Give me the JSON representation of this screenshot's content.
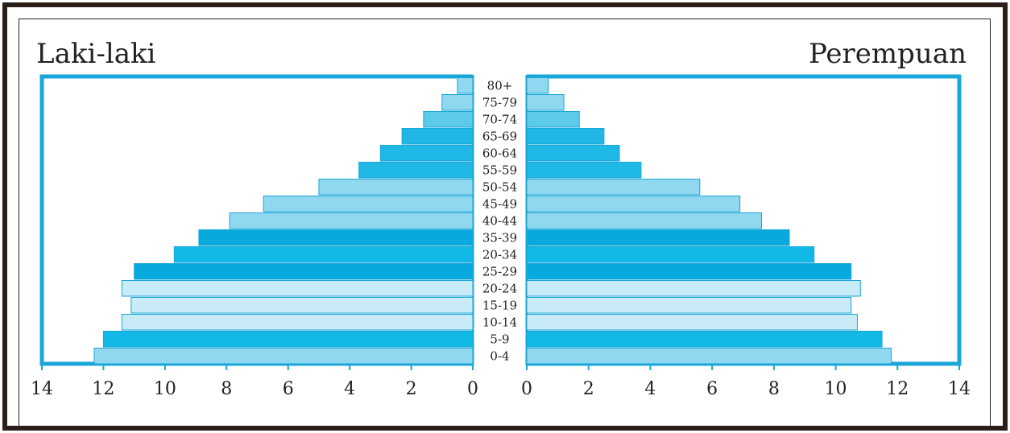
{
  "chart_data": {
    "type": "bar",
    "title_left": "Laki-laki",
    "title_right": "Perempuan",
    "categories": [
      "80+",
      "75-79",
      "70-74",
      "65-69",
      "60-64",
      "55-59",
      "50-54",
      "45-49",
      "40-44",
      "35-39",
      "20-34",
      "25-29",
      "20-24",
      "15-19",
      "10-14",
      "5-9",
      "0-4"
    ],
    "series": [
      {
        "name": "Laki-laki",
        "values": [
          0.5,
          1.0,
          1.6,
          2.3,
          3.0,
          3.7,
          5.0,
          6.8,
          7.9,
          8.9,
          9.7,
          11.0,
          11.4,
          11.1,
          11.4,
          12.0,
          12.3
        ]
      },
      {
        "name": "Perempuan",
        "values": [
          0.7,
          1.2,
          1.7,
          2.5,
          3.0,
          3.7,
          5.6,
          6.9,
          7.6,
          8.5,
          9.3,
          10.5,
          10.8,
          10.5,
          10.7,
          11.5,
          11.8
        ]
      }
    ],
    "bar_colors": [
      "#8fd8f0",
      "#8fd8f0",
      "#5ccbea",
      "#1fb7e4",
      "#1fb7e4",
      "#1fb7e4",
      "#8fd8f0",
      "#8fd8f0",
      "#8fd8f0",
      "#08a9dd",
      "#12b9e6",
      "#08a9dd",
      "#c8ebf7",
      "#c8ebf7",
      "#c8ebf7",
      "#12b9e6",
      "#8fd8f0"
    ],
    "xticks_left": [
      "14",
      "12",
      "10",
      "8",
      "6",
      "4",
      "2",
      "0"
    ],
    "xticks_right": [
      "0",
      "2",
      "4",
      "6",
      "8",
      "10",
      "12",
      "14"
    ],
    "xlim": [
      0,
      14
    ],
    "frame_color": "#1aa6d9",
    "bar_stroke": "#1aa6d9"
  }
}
